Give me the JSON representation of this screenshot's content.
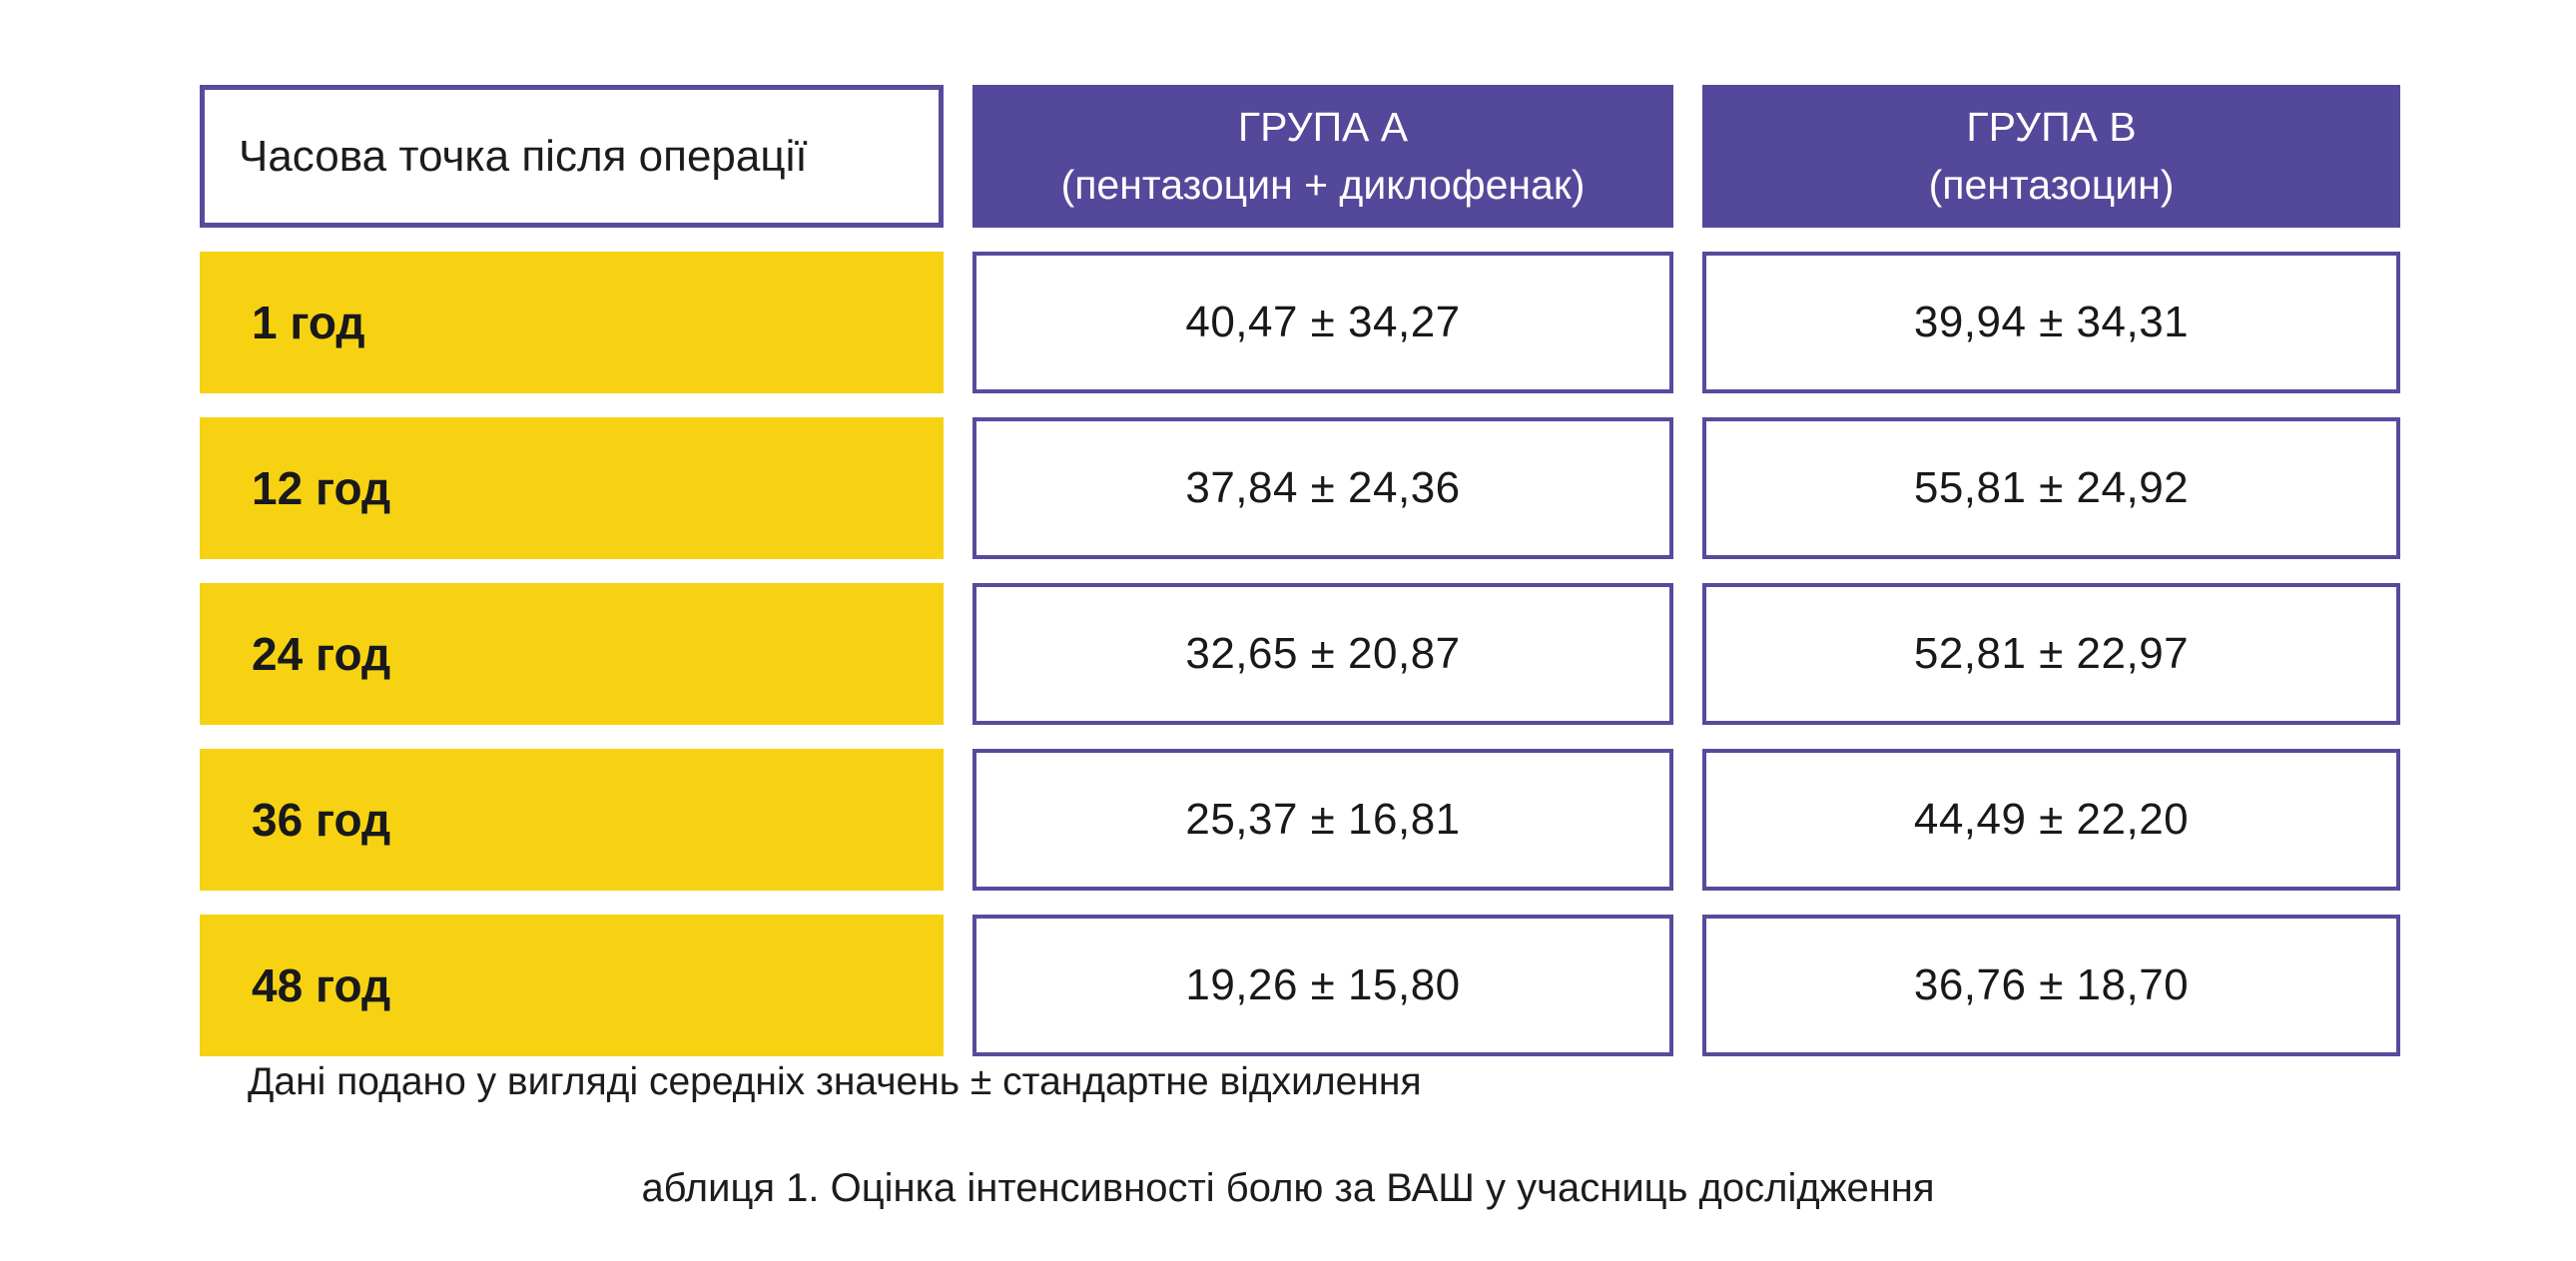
{
  "table": {
    "header": {
      "time_column": "Часова точка після операції",
      "group_a": {
        "title": "ГРУПА А",
        "subtitle": "(пентазоцин + диклофенак)"
      },
      "group_b": {
        "title": "ГРУПА В",
        "subtitle": "(пентазоцин)"
      }
    },
    "rows": [
      {
        "time": "1 год",
        "group_a": "40,47 ± 34,27",
        "group_b": "39,94 ± 34,31"
      },
      {
        "time": "12 год",
        "group_a": "37,84 ± 24,36",
        "group_b": "55,81 ± 24,92"
      },
      {
        "time": "24 год",
        "group_a": "32,65 ± 20,87",
        "group_b": "52,81 ± 22,97"
      },
      {
        "time": "36 год",
        "group_a": "25,37 ± 16,81",
        "group_b": "44,49 ± 22,20"
      },
      {
        "time": "48 год",
        "group_a": "19,26 ± 15,80",
        "group_b": "36,76 ± 18,70"
      }
    ],
    "footnote": "Дані подано у вигляді середніх значень ± стандартне відхилення",
    "caption": "аблиця 1. Оцінка інтенсивності болю за ВАШ у учасниць дослідження"
  },
  "colors": {
    "purple_fill": "#54489B",
    "purple_border": "#564B9D",
    "yellow_fill": "#F6D213",
    "text": "#1c1c1e",
    "header_text": "#ffffff",
    "background": "#ffffff"
  },
  "chart_data": {
    "type": "table",
    "title": "аблиця 1. Оцінка інтенсивності болю за ВАШ у учасниць дослідження",
    "note": "Дані подано у вигляді середніх значень ± стандартне відхилення",
    "columns": [
      "Часова точка після операції",
      "ГРУПА А (пентазоцин + диклофенак)",
      "ГРУПА В (пентазоцин)"
    ],
    "categories": [
      "1 год",
      "12 год",
      "24 год",
      "36 год",
      "48 год"
    ],
    "series": [
      {
        "name": "ГРУПА А (пентазоцин + диклофенак)",
        "mean": [
          40.47,
          37.84,
          32.65,
          25.37,
          19.26
        ],
        "sd": [
          34.27,
          24.36,
          20.87,
          16.81,
          15.8
        ]
      },
      {
        "name": "ГРУПА В (пентазоцин)",
        "mean": [
          39.94,
          55.81,
          52.81,
          44.49,
          36.76
        ],
        "sd": [
          34.31,
          24.92,
          22.97,
          22.2,
          18.7
        ]
      }
    ]
  }
}
